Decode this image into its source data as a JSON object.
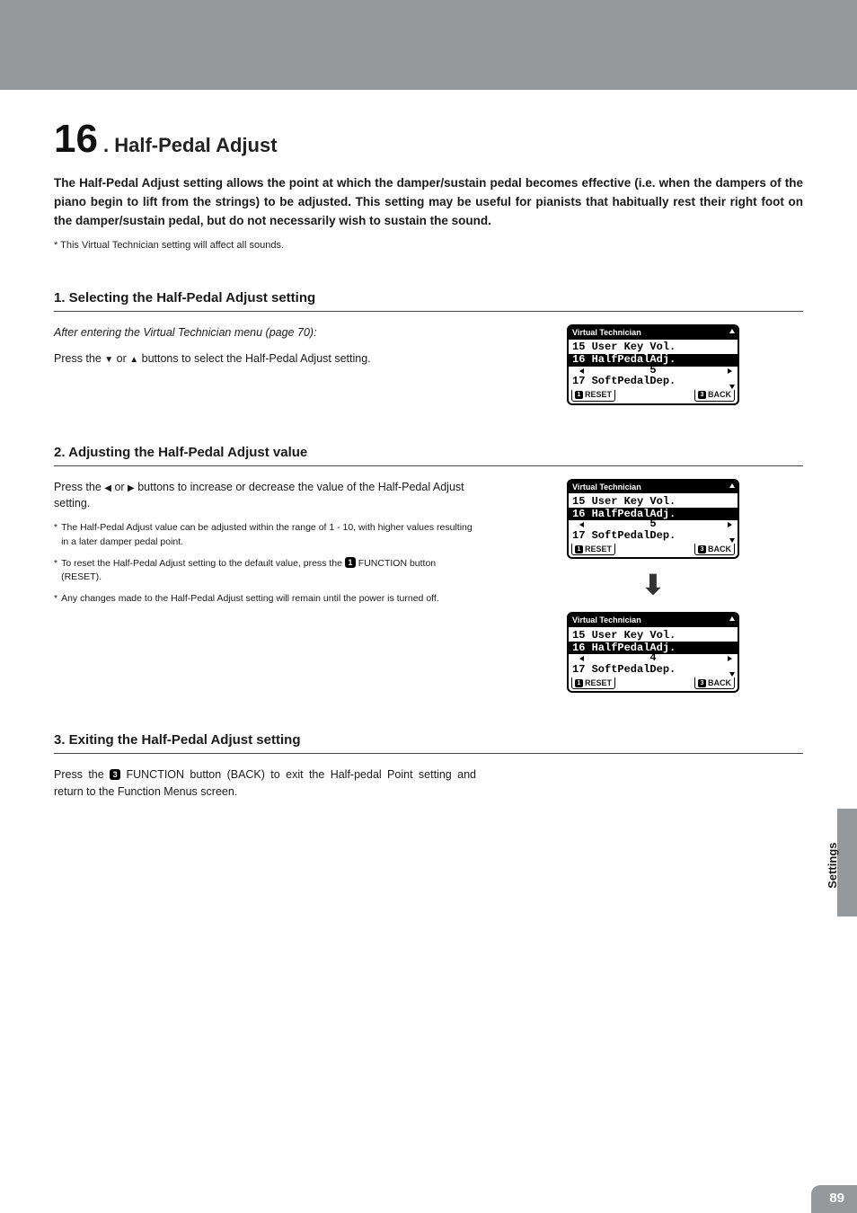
{
  "header": {
    "bar_color": "#95999c"
  },
  "title": {
    "number": "16",
    "separator": ".",
    "name": "Half-Pedal Adjust"
  },
  "intro": "The Half-Pedal Adjust setting allows the point at which the damper/sustain pedal becomes effective (i.e. when the dampers of the piano begin to lift from the strings) to be adjusted.  This setting may be useful for pianists that habitually rest their right foot on the damper/sustain pedal, but do not necessarily wish to sustain the sound.",
  "intro_note_prefix": "*",
  "intro_note": "This Virtual Technician setting will affect all sounds.",
  "sections": [
    {
      "heading": "1. Selecting the Half-Pedal Adjust setting",
      "left": {
        "preface": "After entering the Virtual Technician menu (page 70):",
        "body_pre": "Press the ",
        "btn1": "▼",
        "mid": " or ",
        "btn2": "▲",
        "body_post": " buttons to select the Half-Pedal Adjust setting."
      },
      "lcd": {
        "title": "Virtual Technician",
        "line1": "15 User Key Vol.",
        "line2": "16 HalfPedalAdj.",
        "value": "5",
        "line3": "17 SoftPedalDep.",
        "foot_left_num": "1",
        "foot_left": "RESET",
        "foot_right_num": "3",
        "foot_right": "BACK"
      }
    },
    {
      "heading": "2. Adjusting the Half-Pedal Adjust value",
      "left": {
        "body_pre": "Press the ",
        "btn1": "◀",
        "mid": " or ",
        "btn2": "▶",
        "body_post": " buttons to increase or decrease the value of the Half-Pedal Adjust setting.",
        "notes": [
          "The Half-Pedal Adjust value can be adjusted within the range of 1 - 10, with higher values resulting in a later damper pedal point.",
          "To reset the Half-Pedal Adjust setting to the default value, press the {badge1} FUNCTION button (RESET).",
          "Any changes made to the Half-Pedal Adjust setting will remain until the power is turned off."
        ],
        "badge1": "1"
      },
      "lcd_top": {
        "title": "Virtual Technician",
        "line1": "15 User Key Vol.",
        "line2": "16 HalfPedalAdj.",
        "value": "5",
        "line3": "17 SoftPedalDep.",
        "foot_left_num": "1",
        "foot_left": "RESET",
        "foot_right_num": "3",
        "foot_right": "BACK"
      },
      "lcd_bottom": {
        "title": "Virtual Technician",
        "line1": "15 User Key Vol.",
        "line2": "16 HalfPedalAdj.",
        "value": "4",
        "line3": "17 SoftPedalDep.",
        "foot_left_num": "1",
        "foot_left": "RESET",
        "foot_right_num": "3",
        "foot_right": "BACK"
      },
      "arrow_glyph": "⬇"
    },
    {
      "heading": "3. Exiting the Half-Pedal Adjust setting",
      "left": {
        "body_pre": "Press the ",
        "badge": "3",
        "body_post": " FUNCTION button (BACK) to exit the Half-pedal Point setting and return to the Function Menus screen."
      }
    }
  ],
  "side_label": "Settings",
  "page_number": "89",
  "colors": {
    "header": "#95999c",
    "text": "#1a1a1a",
    "lcd_border": "#000000",
    "lcd_bg": "#ffffff"
  }
}
